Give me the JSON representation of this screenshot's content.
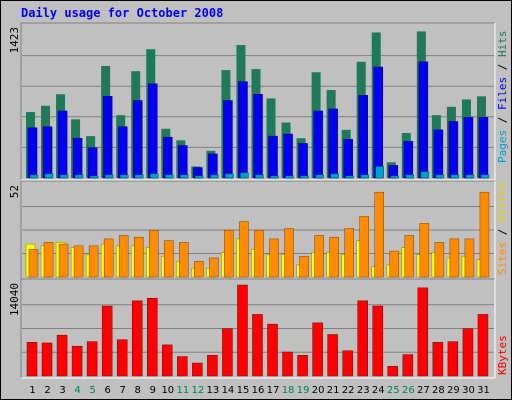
{
  "title": "Daily usage for October 2008",
  "chart_data": [
    {
      "type": "bar",
      "panel": "hits-files-pages",
      "categories": [
        "1",
        "2",
        "3",
        "4",
        "5",
        "6",
        "7",
        "8",
        "9",
        "10",
        "11",
        "12",
        "13",
        "14",
        "15",
        "16",
        "17",
        "18",
        "19",
        "20",
        "21",
        "22",
        "23",
        "24",
        "25",
        "26",
        "27",
        "28",
        "29",
        "30",
        "31"
      ],
      "ymax_label": "1423",
      "ylim": [
        0,
        1423
      ],
      "legend": {
        "pages": "Pages",
        "files": "Files",
        "hits": "Hits",
        "sep": " / "
      },
      "series": [
        {
          "name": "Hits",
          "color": "#1e7a58",
          "values": [
            630,
            690,
            800,
            560,
            400,
            1070,
            600,
            1020,
            1230,
            470,
            360,
            110,
            260,
            1030,
            1270,
            1040,
            760,
            530,
            380,
            1010,
            840,
            460,
            1110,
            1390,
            150,
            430,
            1400,
            600,
            680,
            750,
            780
          ]
        },
        {
          "name": "Files",
          "color": "#0000ee",
          "values": [
            480,
            490,
            640,
            380,
            290,
            780,
            490,
            740,
            900,
            390,
            310,
            100,
            230,
            740,
            920,
            800,
            400,
            420,
            330,
            640,
            660,
            370,
            790,
            1060,
            120,
            350,
            1110,
            460,
            540,
            580,
            580
          ]
        },
        {
          "name": "Pages",
          "color": "#00a0c8",
          "values": [
            30,
            40,
            30,
            30,
            20,
            30,
            30,
            30,
            40,
            30,
            30,
            20,
            30,
            40,
            50,
            30,
            20,
            20,
            20,
            30,
            40,
            20,
            30,
            110,
            20,
            30,
            60,
            30,
            30,
            30,
            30
          ]
        }
      ]
    },
    {
      "type": "bar",
      "panel": "visits-sites",
      "categories": [
        "1",
        "2",
        "3",
        "4",
        "5",
        "6",
        "7",
        "8",
        "9",
        "10",
        "11",
        "12",
        "13",
        "14",
        "15",
        "16",
        "17",
        "18",
        "19",
        "20",
        "21",
        "22",
        "23",
        "24",
        "25",
        "26",
        "27",
        "28",
        "29",
        "30",
        "31"
      ],
      "ymax_label": "52",
      "ylim": [
        0,
        52
      ],
      "legend": {
        "sites": "Sites",
        "visits": "Visits",
        "sep": " / "
      },
      "series": [
        {
          "name": "Visits",
          "color": "#ffff00",
          "values": [
            19,
            18,
            20,
            17,
            13,
            19,
            18,
            18,
            17,
            12,
            9,
            5,
            5,
            14,
            22,
            16,
            13,
            13,
            7,
            14,
            14,
            13,
            21,
            6,
            7,
            17,
            13,
            14,
            11,
            12,
            10
          ]
        },
        {
          "name": "Sites",
          "color": "#ff8c00",
          "values": [
            16,
            20,
            19,
            18,
            18,
            22,
            24,
            23,
            27,
            21,
            20,
            9,
            11,
            27,
            32,
            27,
            22,
            28,
            12,
            24,
            23,
            28,
            35,
            49,
            15,
            24,
            31,
            20,
            22,
            22,
            49
          ]
        }
      ]
    },
    {
      "type": "bar",
      "panel": "kbytes",
      "categories": [
        "1",
        "2",
        "3",
        "4",
        "5",
        "6",
        "7",
        "8",
        "9",
        "10",
        "11",
        "12",
        "13",
        "14",
        "15",
        "16",
        "17",
        "18",
        "19",
        "20",
        "21",
        "22",
        "23",
        "24",
        "25",
        "26",
        "27",
        "28",
        "29",
        "30",
        "31"
      ],
      "ymax_label": "14040",
      "ylim": [
        0,
        14040
      ],
      "legend": {
        "kbytes": "KBytes"
      },
      "series": [
        {
          "name": "KBytes",
          "color": "#ff0000",
          "values": [
            5200,
            5100,
            6300,
            4600,
            5300,
            10800,
            5600,
            11600,
            12000,
            4800,
            3000,
            2000,
            3200,
            7300,
            14040,
            9500,
            8000,
            3700,
            3200,
            8200,
            6400,
            3900,
            11600,
            10800,
            1500,
            3300,
            13600,
            5200,
            5300,
            7300,
            9500
          ]
        }
      ]
    }
  ],
  "weekend_days": [
    "4",
    "5",
    "11",
    "12",
    "18",
    "19",
    "25",
    "26"
  ]
}
